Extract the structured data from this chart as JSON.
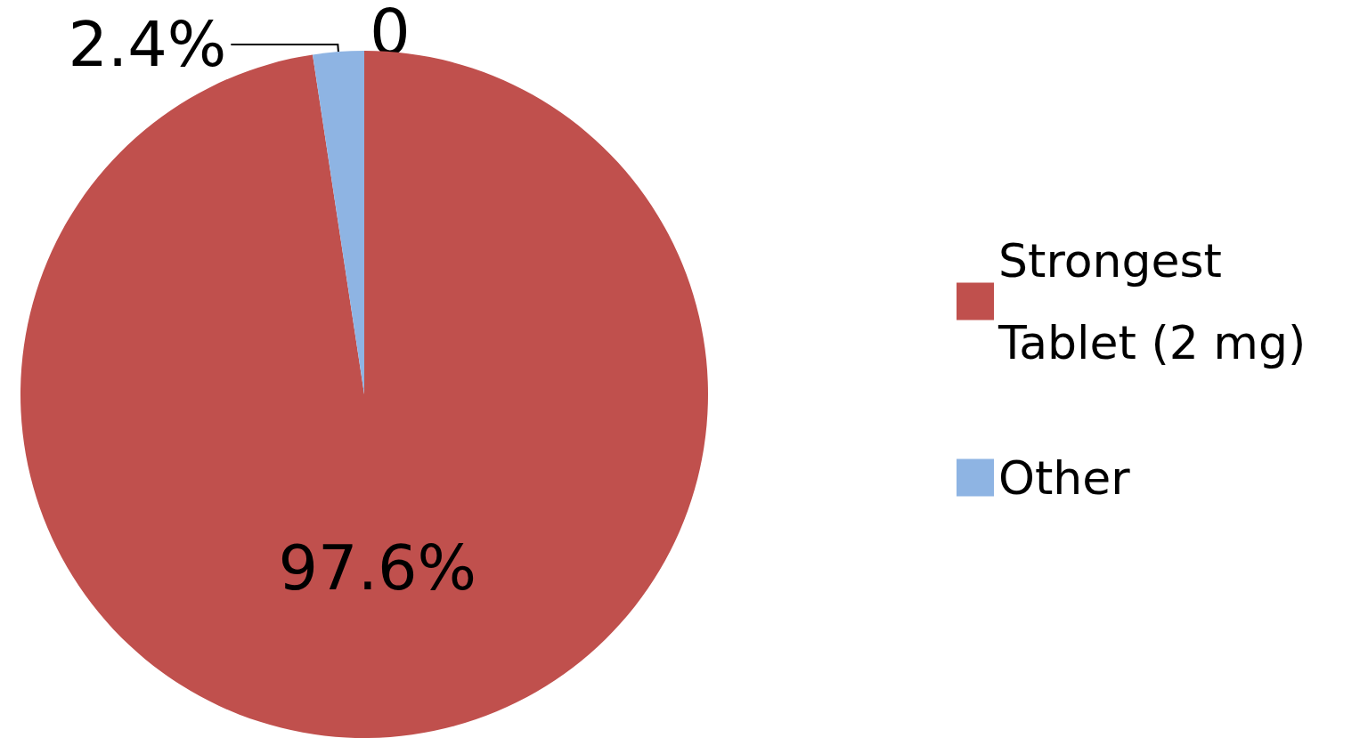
{
  "chart_data": {
    "type": "pie",
    "categories": [
      "Strongest Tablet (2 mg)",
      "Other"
    ],
    "values": [
      97.6,
      2.4
    ],
    "colors": [
      "#c0504d",
      "#8eb4e3"
    ],
    "value_labels": [
      "97.6%",
      "2.4%"
    ],
    "annotations": [
      "0"
    ],
    "legend": "right"
  }
}
